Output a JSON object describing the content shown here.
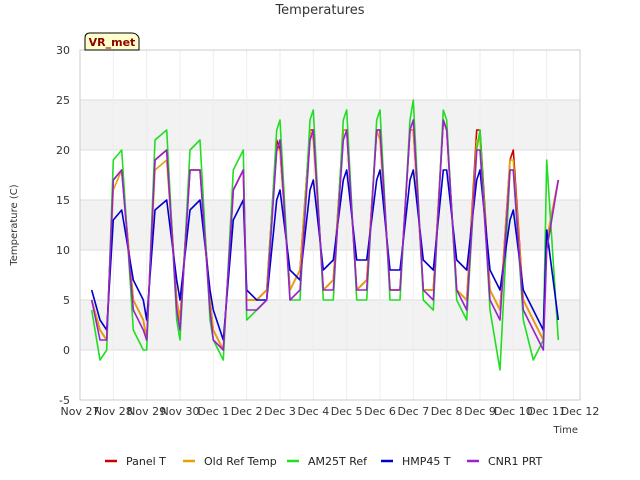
{
  "chart_data": {
    "type": "line",
    "title": "Temperatures",
    "xlabel": "Time",
    "ylabel": "Temperature (C)",
    "badge": "VR_met",
    "ylim": [
      -5,
      30
    ],
    "xlim": [
      0,
      15
    ],
    "yticks": [
      -5,
      0,
      5,
      10,
      15,
      20,
      25,
      30
    ],
    "xticks": [
      "Nov 27",
      "Nov 28",
      "Nov 29",
      "Nov 30",
      "Dec 1",
      "Dec 2",
      "Dec 3",
      "Dec 4",
      "Dec 5",
      "Dec 6",
      "Dec 7",
      "Dec 8",
      "Dec 9",
      "Dec 10",
      "Dec 11",
      "Dec 12"
    ],
    "bands": [
      [
        0,
        5
      ],
      [
        10,
        15
      ],
      [
        20,
        25
      ]
    ],
    "series": [
      {
        "name": "Panel T",
        "color": "#cc0000",
        "x": [
          0.35,
          0.6,
          0.8,
          1.0,
          1.25,
          1.6,
          1.9,
          2.0,
          2.25,
          2.6,
          2.9,
          3.0,
          3.3,
          3.6,
          3.9,
          4.0,
          4.3,
          4.6,
          4.9,
          5.0,
          5.3,
          5.6,
          5.9,
          6.0,
          6.3,
          6.6,
          6.9,
          7.0,
          7.3,
          7.6,
          7.9,
          8.0,
          8.3,
          8.6,
          8.9,
          9.0,
          9.3,
          9.6,
          9.9,
          10.0,
          10.3,
          10.6,
          10.9,
          11.0,
          11.3,
          11.6,
          11.9,
          12.0,
          12.3,
          12.6,
          12.9,
          13.0,
          13.3,
          13.6,
          13.9,
          14.0,
          14.35
        ],
        "y": [
          5,
          2,
          1,
          17,
          18,
          5,
          3,
          1,
          19,
          20,
          5,
          3,
          18,
          18,
          5,
          2,
          0,
          16,
          18,
          5,
          5,
          6,
          21,
          20,
          6,
          8,
          22,
          22,
          6,
          7,
          22,
          22,
          6,
          7,
          22,
          22,
          6,
          6,
          22,
          22,
          6,
          6,
          23,
          22,
          6,
          5,
          22,
          22,
          6,
          4,
          19,
          20,
          5,
          3,
          1,
          11,
          17
        ]
      },
      {
        "name": "Old Ref Temp",
        "color": "#e8a000",
        "x": [
          0.35,
          0.6,
          0.8,
          1.0,
          1.25,
          1.6,
          1.9,
          2.0,
          2.25,
          2.6,
          2.9,
          3.0,
          3.3,
          3.6,
          3.9,
          4.0,
          4.3,
          4.6,
          4.9,
          5.0,
          5.3,
          5.6,
          5.9,
          6.0,
          6.3,
          6.6,
          6.9,
          7.0,
          7.3,
          7.6,
          7.9,
          8.0,
          8.3,
          8.6,
          8.9,
          9.0,
          9.3,
          9.6,
          9.9,
          10.0,
          10.3,
          10.6,
          10.9,
          11.0,
          11.3,
          11.6,
          11.9,
          12.0,
          12.3,
          12.6,
          12.9,
          13.0,
          13.3,
          13.6,
          13.9,
          14.0,
          14.35
        ],
        "y": [
          5,
          2,
          1,
          16,
          18,
          5,
          3,
          1,
          18,
          19,
          5,
          3,
          18,
          18,
          5,
          2,
          0,
          16,
          18,
          5,
          5,
          6,
          20,
          20,
          6,
          8,
          22,
          21,
          6,
          7,
          22,
          22,
          6,
          7,
          22,
          21,
          6,
          6,
          22,
          22,
          6,
          6,
          23,
          22,
          6,
          5,
          21,
          21,
          6,
          4,
          19,
          19,
          5,
          3,
          1,
          11,
          17
        ]
      },
      {
        "name": "AM25T Ref",
        "color": "#22dd22",
        "x": [
          0.35,
          0.6,
          0.8,
          1.0,
          1.25,
          1.6,
          1.9,
          2.0,
          2.25,
          2.6,
          2.9,
          3.0,
          3.3,
          3.6,
          3.9,
          4.0,
          4.3,
          4.6,
          4.9,
          5.0,
          5.3,
          5.6,
          5.9,
          6.0,
          6.3,
          6.6,
          6.9,
          7.0,
          7.3,
          7.6,
          7.9,
          8.0,
          8.3,
          8.6,
          8.9,
          9.0,
          9.3,
          9.6,
          9.9,
          10.0,
          10.3,
          10.6,
          10.9,
          11.0,
          11.3,
          11.6,
          11.9,
          12.0,
          12.3,
          12.6,
          12.9,
          13.0,
          13.3,
          13.6,
          13.9,
          14.0,
          14.35
        ],
        "y": [
          4,
          -1,
          0,
          19,
          20,
          2,
          0,
          0,
          21,
          22,
          3,
          1,
          20,
          21,
          3,
          1,
          -1,
          18,
          20,
          3,
          4,
          5,
          22,
          23,
          5,
          5,
          23,
          24,
          5,
          5,
          23,
          24,
          5,
          5,
          23,
          24,
          5,
          5,
          23,
          25,
          5,
          4,
          24,
          23,
          5,
          3,
          20,
          22,
          4,
          -2,
          18,
          18,
          3,
          -1,
          1,
          19,
          1
        ]
      },
      {
        "name": "HMP45 T",
        "color": "#0000cc",
        "x": [
          0.35,
          0.6,
          0.8,
          1.0,
          1.25,
          1.6,
          1.9,
          2.0,
          2.25,
          2.6,
          2.9,
          3.0,
          3.3,
          3.6,
          3.9,
          4.0,
          4.3,
          4.6,
          4.9,
          5.0,
          5.3,
          5.6,
          5.9,
          6.0,
          6.3,
          6.6,
          6.9,
          7.0,
          7.3,
          7.6,
          7.9,
          8.0,
          8.3,
          8.6,
          8.9,
          9.0,
          9.3,
          9.6,
          9.9,
          10.0,
          10.3,
          10.6,
          10.9,
          11.0,
          11.3,
          11.6,
          11.9,
          12.0,
          12.3,
          12.6,
          12.9,
          13.0,
          13.3,
          13.6,
          13.9,
          14.0,
          14.35
        ],
        "y": [
          6,
          3,
          2,
          13,
          14,
          7,
          5,
          3,
          14,
          15,
          7,
          5,
          14,
          15,
          6,
          4,
          1,
          13,
          15,
          6,
          5,
          5,
          15,
          16,
          8,
          7,
          16,
          17,
          8,
          9,
          17,
          18,
          9,
          9,
          17,
          18,
          8,
          8,
          17,
          18,
          9,
          8,
          18,
          18,
          9,
          8,
          17,
          18,
          8,
          6,
          13,
          14,
          6,
          4,
          2,
          12,
          3
        ]
      },
      {
        "name": "CNR1 PRT",
        "color": "#9922cc",
        "x": [
          0.35,
          0.6,
          0.8,
          1.0,
          1.25,
          1.6,
          1.9,
          2.0,
          2.25,
          2.6,
          2.9,
          3.0,
          3.3,
          3.6,
          3.9,
          4.0,
          4.3,
          4.6,
          4.9,
          5.0,
          5.3,
          5.6,
          5.9,
          6.0,
          6.3,
          6.6,
          6.9,
          7.0,
          7.3,
          7.6,
          7.9,
          8.0,
          8.3,
          8.6,
          8.9,
          9.0,
          9.3,
          9.6,
          9.9,
          10.0,
          10.3,
          10.6,
          10.9,
          11.0,
          11.3,
          11.6,
          11.9,
          12.0,
          12.3,
          12.6,
          12.9,
          13.0,
          13.3,
          13.6,
          13.9,
          14.0,
          14.35
        ],
        "y": [
          5,
          1,
          1,
          17,
          18,
          4,
          2,
          1,
          19,
          20,
          4,
          2,
          18,
          18,
          4,
          1,
          0,
          16,
          18,
          4,
          4,
          5,
          20,
          21,
          5,
          6,
          21,
          22,
          6,
          6,
          21,
          22,
          6,
          6,
          22,
          22,
          6,
          6,
          22,
          23,
          6,
          5,
          23,
          22,
          6,
          4,
          20,
          20,
          5,
          3,
          18,
          18,
          4,
          2,
          0,
          10,
          17
        ]
      }
    ]
  }
}
